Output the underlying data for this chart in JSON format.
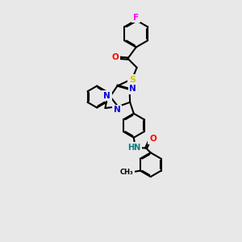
{
  "bg_color": "#e8e8e8",
  "atom_colors": {
    "N": "#0000dd",
    "O": "#ff0000",
    "S": "#cccc00",
    "F": "#ff00ff",
    "H": "#008080",
    "C": "#000000"
  },
  "bond_color": "#000000",
  "bond_width": 1.5
}
